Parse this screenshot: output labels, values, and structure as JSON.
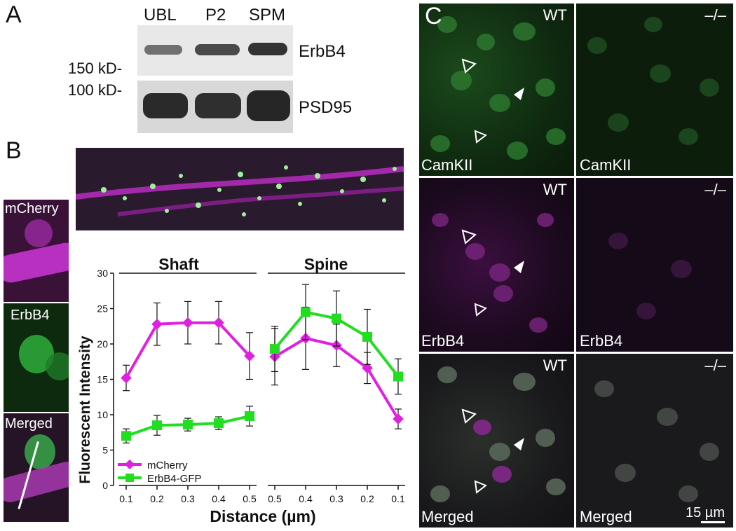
{
  "panelA": {
    "letter": "A",
    "lanes": [
      "UBL",
      "P2",
      "SPM"
    ],
    "markers": [
      "150 kD-",
      "100 kD-"
    ],
    "bands": [
      "ErbB4",
      "PSD95"
    ]
  },
  "panelB": {
    "letter": "B",
    "insets": [
      "mCherry",
      "ErbB4",
      "Merged"
    ]
  },
  "panelC": {
    "letter": "C",
    "col_labels": [
      "WT",
      "–/–"
    ],
    "row_labels": [
      "CamKII",
      "ErbB4",
      "Merged"
    ],
    "scale_bar": "15 µm"
  },
  "chart_data": {
    "type": "line",
    "ylabel": "Fluorescent Intensity",
    "xlabel": "Distance (µm)",
    "ylim": [
      0,
      30
    ],
    "yticks": [
      0,
      5,
      10,
      15,
      20,
      25,
      30
    ],
    "legend_position": "bottom-left",
    "groups": [
      {
        "title": "Shaft",
        "x": [
          0.1,
          0.2,
          0.3,
          0.4,
          0.5
        ],
        "series": [
          {
            "name": "mCherry",
            "color": "#e020e0",
            "marker": "diamond",
            "values": [
              15.2,
              22.8,
              23.0,
              23.0,
              18.3
            ],
            "errors": [
              1.8,
              3.0,
              3.0,
              3.0,
              3.3
            ]
          },
          {
            "name": "ErbB4-GFP",
            "color": "#22dd22",
            "marker": "square",
            "values": [
              7.0,
              8.5,
              8.6,
              8.8,
              9.8
            ],
            "errors": [
              1.0,
              1.4,
              0.9,
              0.9,
              1.4
            ]
          }
        ]
      },
      {
        "title": "Spine",
        "x": [
          0.5,
          0.4,
          0.3,
          0.2,
          0.1
        ],
        "series": [
          {
            "name": "mCherry",
            "color": "#e020e0",
            "marker": "diamond",
            "values": [
              18.2,
              20.8,
              19.8,
              16.6,
              9.4
            ],
            "errors": [
              4.0,
              4.4,
              3.0,
              2.2,
              1.4
            ]
          },
          {
            "name": "ErbB4-GFP",
            "color": "#22dd22",
            "marker": "square",
            "values": [
              19.3,
              24.5,
              23.6,
              21.0,
              15.4
            ],
            "errors": [
              3.2,
              3.9,
              3.9,
              3.9,
              2.5
            ]
          }
        ]
      }
    ]
  }
}
